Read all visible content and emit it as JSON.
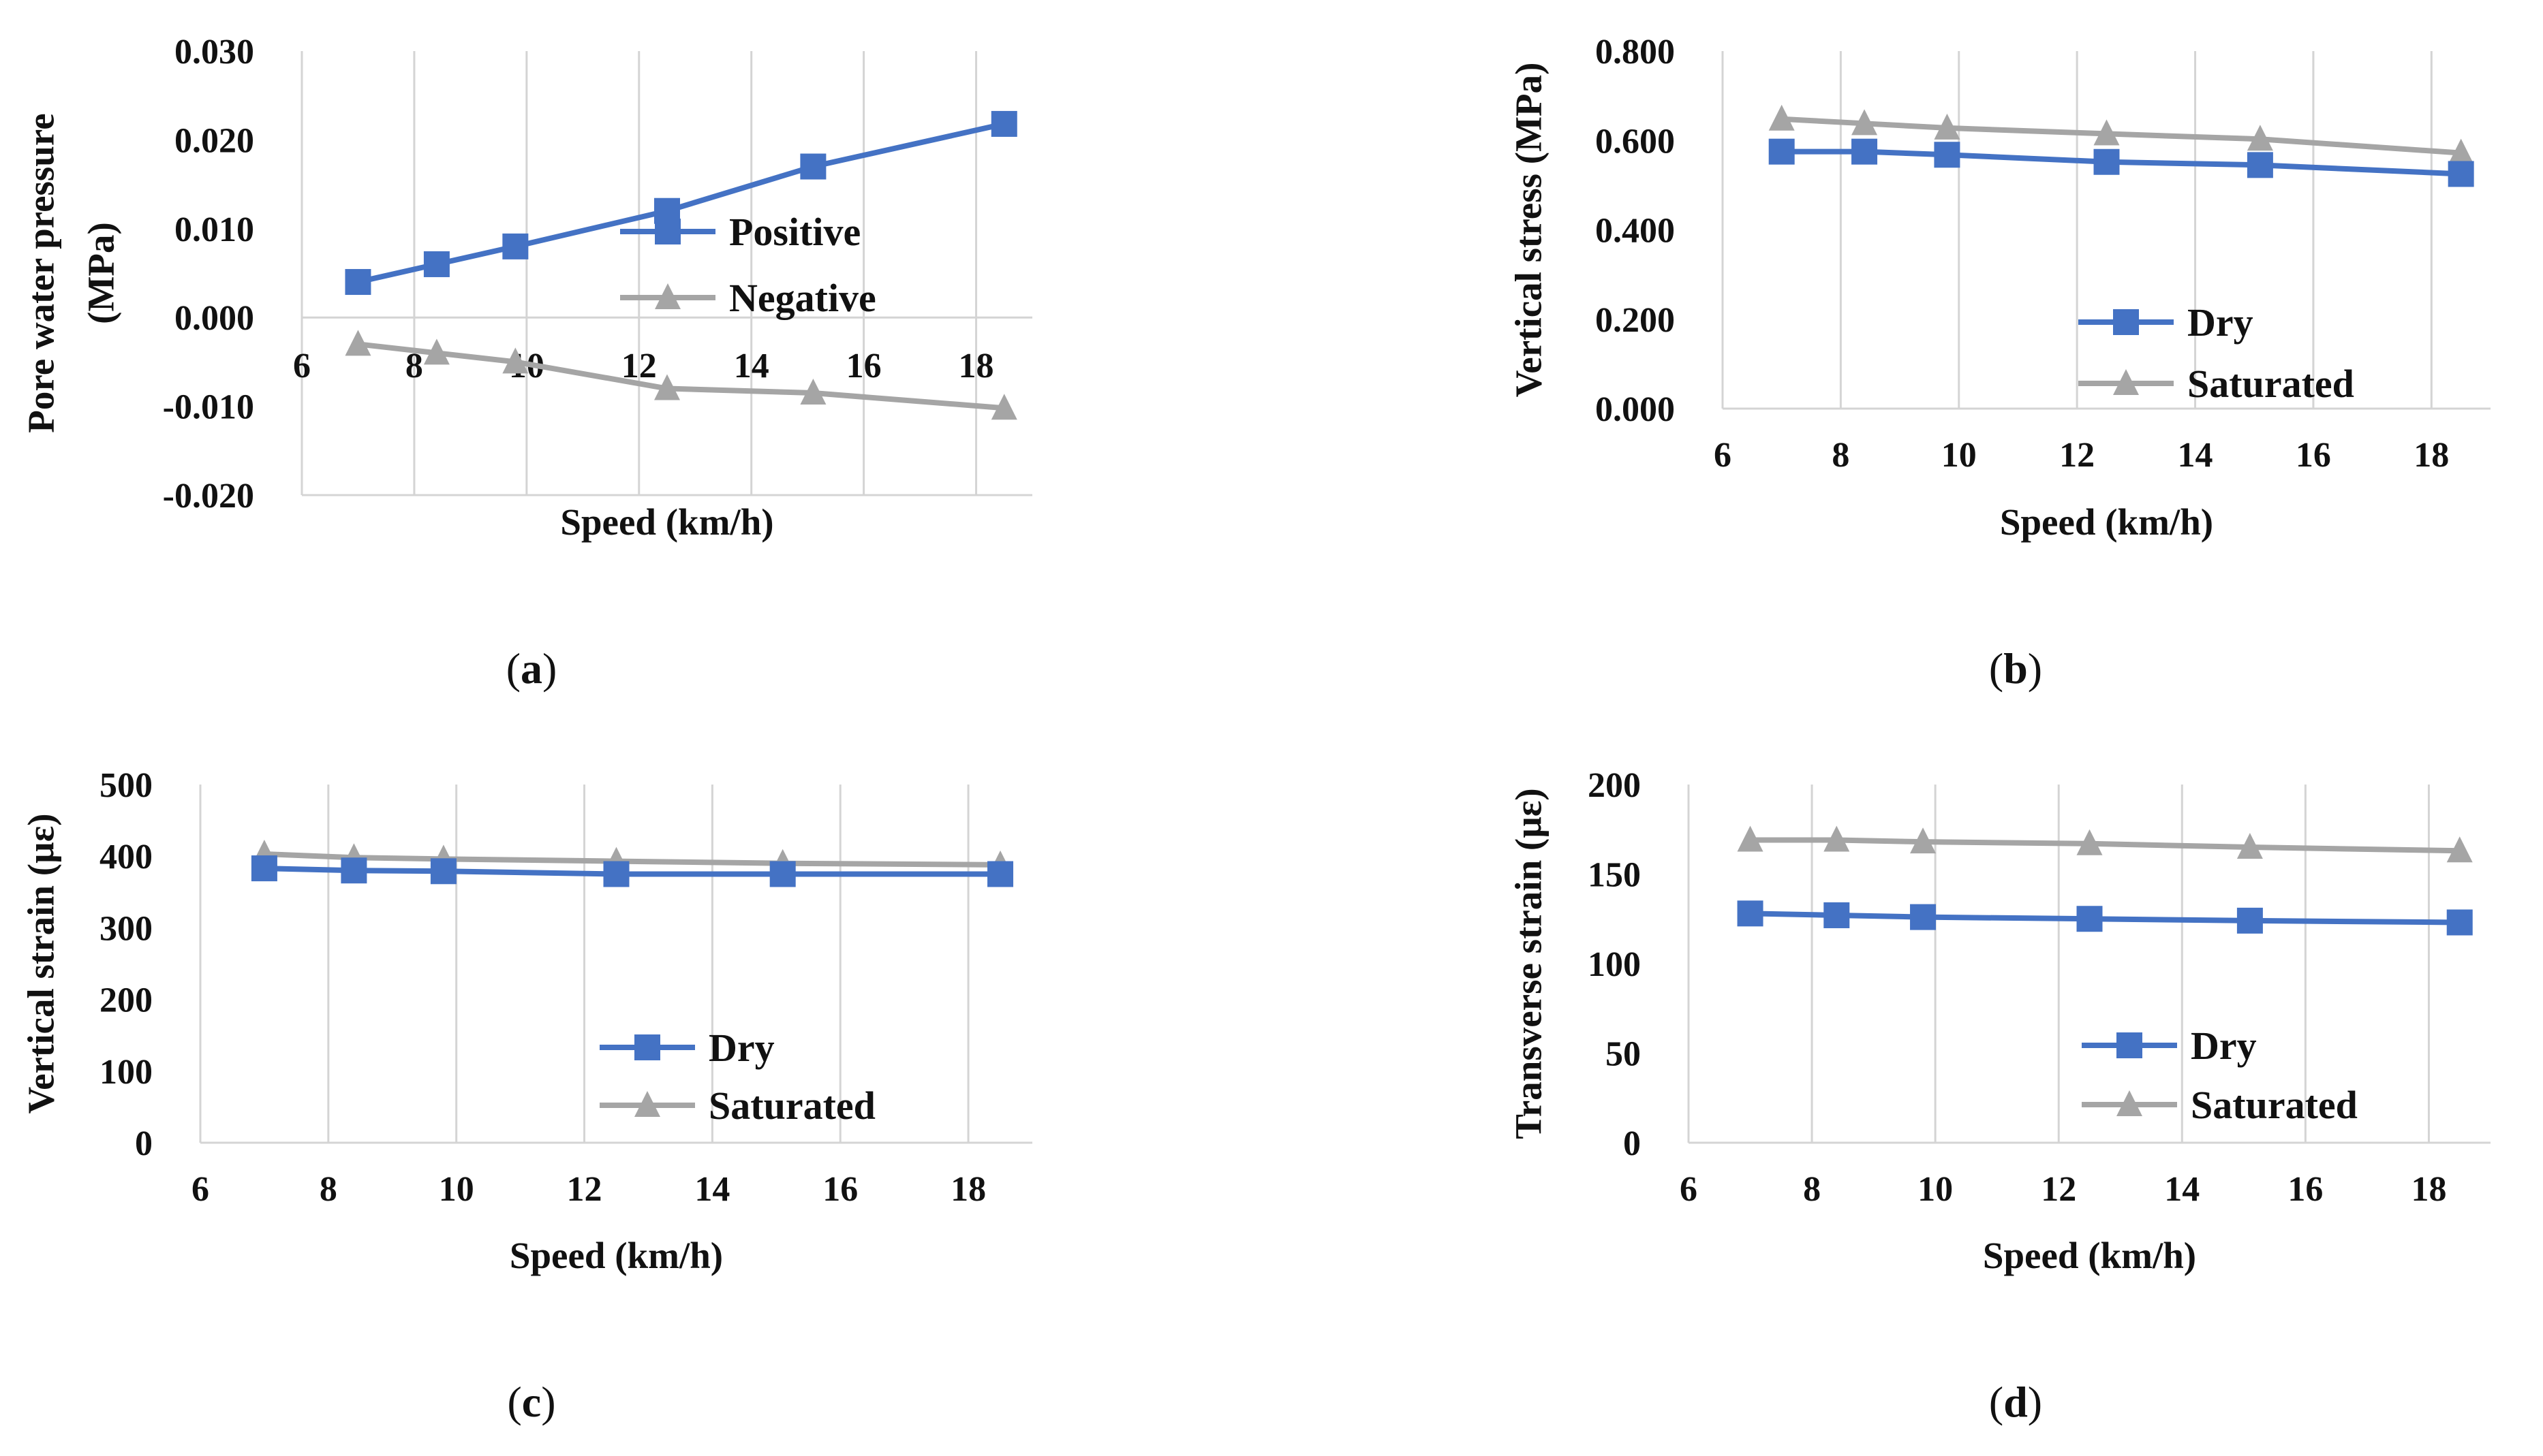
{
  "colors": {
    "blue": "#4472c4",
    "gray": "#a5a5a5",
    "grid": "#d4d4d4",
    "text": "#111111"
  },
  "chart_data": [
    {
      "type": "line",
      "caption": "a",
      "xlabel": "Speed (km/h)",
      "ylabel": [
        "Pore water pressure",
        "(MPa)"
      ],
      "xlim": [
        6,
        19
      ],
      "ylim": [
        -0.02,
        0.03
      ],
      "xticks": [
        "6",
        "8",
        "10",
        "12",
        "14",
        "16",
        "18"
      ],
      "yticks": [
        "-0.020",
        "-0.010",
        "0.000",
        "0.010",
        "0.020",
        "0.030"
      ],
      "grid": "vertical",
      "x_labels_at_zero": true,
      "legend_position": "right-middle",
      "series": [
        {
          "name": "Positive",
          "color": "#4472c4",
          "marker": "square",
          "x": [
            7,
            8.4,
            9.8,
            12.5,
            15.1,
            18.5
          ],
          "y": [
            0.004,
            0.006,
            0.008,
            0.012,
            0.017,
            0.0218
          ]
        },
        {
          "name": "Negative",
          "color": "#a5a5a5",
          "marker": "triangle",
          "x": [
            7,
            8.4,
            9.8,
            12.5,
            15.1,
            18.5
          ],
          "y": [
            -0.003,
            -0.004,
            -0.005,
            -0.008,
            -0.0085,
            -0.0102
          ]
        }
      ]
    },
    {
      "type": "line",
      "caption": "b",
      "xlabel": "Speed (km/h)",
      "ylabel": [
        "Vertical stress (MPa)"
      ],
      "xlim": [
        6,
        19
      ],
      "ylim": [
        0,
        0.8
      ],
      "xticks": [
        "6",
        "8",
        "10",
        "12",
        "14",
        "16",
        "18"
      ],
      "yticks": [
        "0.000",
        "0.200",
        "0.400",
        "0.600",
        "0.800"
      ],
      "grid": "vertical",
      "legend_position": "bottom-right",
      "series": [
        {
          "name": "Dry",
          "color": "#4472c4",
          "marker": "square",
          "x": [
            7,
            8.4,
            9.8,
            12.5,
            15.1,
            18.5
          ],
          "y": [
            0.575,
            0.575,
            0.568,
            0.552,
            0.545,
            0.525
          ]
        },
        {
          "name": "Saturated",
          "color": "#a5a5a5",
          "marker": "triangle",
          "x": [
            7,
            8.4,
            9.8,
            12.5,
            15.1,
            18.5
          ],
          "y": [
            0.648,
            0.638,
            0.628,
            0.615,
            0.603,
            0.572
          ]
        }
      ]
    },
    {
      "type": "line",
      "caption": "c",
      "xlabel": "Speed (km/h)",
      "ylabel": [
        "Vertical strain (µε)"
      ],
      "xlim": [
        6,
        19
      ],
      "ylim": [
        0,
        500
      ],
      "xticks": [
        "6",
        "8",
        "10",
        "12",
        "14",
        "16",
        "18"
      ],
      "yticks": [
        "0",
        "100",
        "200",
        "300",
        "400",
        "500"
      ],
      "grid": "vertical",
      "legend_position": "bottom-right",
      "series": [
        {
          "name": "Dry",
          "color": "#4472c4",
          "marker": "square",
          "x": [
            7,
            8.4,
            9.8,
            12.5,
            15.1,
            18.5
          ],
          "y": [
            383,
            380,
            379,
            375,
            375,
            375
          ]
        },
        {
          "name": "Saturated",
          "color": "#a5a5a5",
          "marker": "triangle",
          "x": [
            7,
            8.4,
            9.8,
            12.5,
            15.1,
            18.5
          ],
          "y": [
            403,
            398,
            396,
            393,
            390,
            388
          ]
        }
      ]
    },
    {
      "type": "line",
      "caption": "d",
      "xlabel": "Speed (km/h)",
      "ylabel": [
        "Transverse strain (µε)"
      ],
      "xlim": [
        6,
        19
      ],
      "ylim": [
        0,
        200
      ],
      "xticks": [
        "6",
        "8",
        "10",
        "12",
        "14",
        "16",
        "18"
      ],
      "yticks": [
        "0",
        "50",
        "100",
        "150",
        "200"
      ],
      "grid": "vertical",
      "legend_position": "bottom-right",
      "series": [
        {
          "name": "Dry",
          "color": "#4472c4",
          "marker": "square",
          "x": [
            7,
            8.4,
            9.8,
            12.5,
            15.1,
            18.5
          ],
          "y": [
            128,
            127,
            126,
            125,
            124,
            123
          ]
        },
        {
          "name": "Saturated",
          "color": "#a5a5a5",
          "marker": "triangle",
          "x": [
            7,
            8.4,
            9.8,
            12.5,
            15.1,
            18.5
          ],
          "y": [
            169,
            169,
            168,
            167,
            165,
            163
          ]
        }
      ]
    }
  ]
}
